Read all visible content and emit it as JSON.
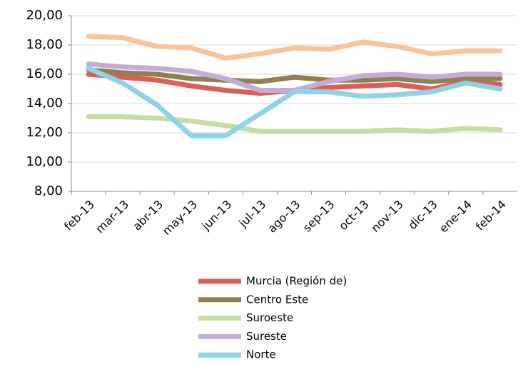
{
  "chart_data": {
    "type": "line",
    "categories": [
      "feb-13",
      "mar-13",
      "abr-13",
      "may-13",
      "jun-13",
      "jul-13",
      "ago-13",
      "sep-13",
      "oct-13",
      "nov-13",
      "dic-13",
      "ene-14",
      "feb-14"
    ],
    "series": [
      {
        "color": "#f9c49a",
        "values": [
          18.6,
          18.5,
          17.9,
          17.8,
          17.1,
          17.4,
          17.8,
          17.7,
          18.2,
          17.9,
          17.4,
          17.6,
          17.6
        ]
      },
      {
        "name": "Murcia (Región de)",
        "color": "#d9605a",
        "values": [
          16.0,
          15.8,
          15.6,
          15.2,
          14.9,
          14.7,
          14.9,
          15.1,
          15.2,
          15.3,
          15.0,
          15.5,
          15.3
        ]
      },
      {
        "name": "Centro Este",
        "color": "#8f8050",
        "values": [
          16.3,
          16.1,
          16.0,
          15.7,
          15.6,
          15.5,
          15.8,
          15.6,
          15.6,
          15.7,
          15.5,
          15.7,
          15.7
        ]
      },
      {
        "name": "Suroeste",
        "color": "#c5dea0",
        "values": [
          13.1,
          13.1,
          13.0,
          12.8,
          12.5,
          12.1,
          12.1,
          12.1,
          12.1,
          12.2,
          12.1,
          12.3,
          12.2
        ]
      },
      {
        "name": "Sureste",
        "color": "#c3add8",
        "values": [
          16.7,
          16.5,
          16.4,
          16.2,
          15.7,
          14.9,
          14.9,
          15.5,
          15.9,
          16.0,
          15.8,
          16.0,
          16.0
        ]
      },
      {
        "name": "Norte",
        "color": "#8fd3e8",
        "values": [
          16.4,
          15.4,
          13.9,
          11.8,
          11.8,
          13.3,
          14.8,
          14.8,
          14.5,
          14.6,
          14.8,
          15.4,
          15.0
        ]
      }
    ],
    "ylim": [
      8,
      20
    ],
    "yticks": [
      {
        "value": 8,
        "label": "8,00"
      },
      {
        "value": 10,
        "label": "10,00"
      },
      {
        "value": 12,
        "label": "12,00"
      },
      {
        "value": 14,
        "label": "14,00"
      },
      {
        "value": 16,
        "label": "16,00"
      },
      {
        "value": 18,
        "label": "18,00"
      },
      {
        "value": 20,
        "label": "20,00"
      }
    ],
    "grid": true
  }
}
